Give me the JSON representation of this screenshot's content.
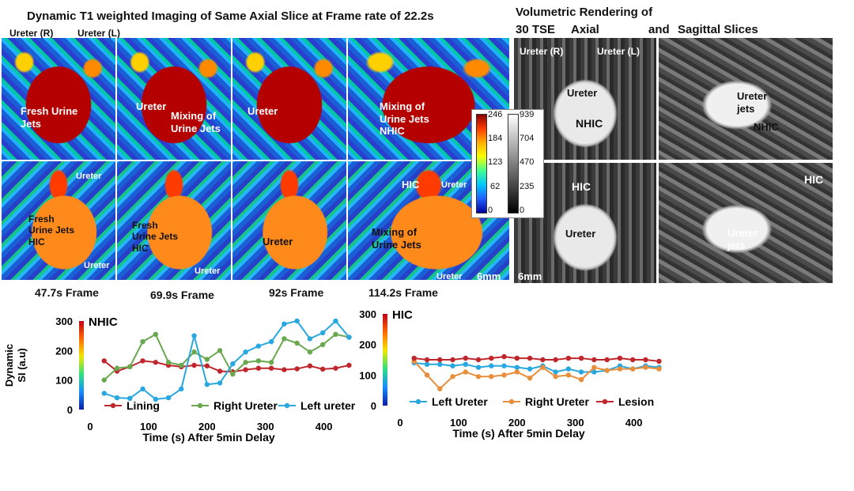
{
  "header": {
    "title": "Dynamic T1 weighted Imaging of Same Axial Slice  at Frame rate of 22.2s",
    "volumetric_line1": "Volumetric Rendering of",
    "volumetric_line2": "30 TSE",
    "axial": "Axial",
    "and": "and",
    "sagittal": "Sagittal Slices"
  },
  "labels": {
    "ureter_r": "Ureter (R)",
    "ureter_l": "Ureter (L)",
    "fresh_urine_jets": "Fresh Urine\nJets",
    "ureter": "Ureter",
    "mixing_of_urine_jets": "Mixing of\nUrine Jets",
    "mixing_nhic": "Mixing of\nUrine Jets\nNHIC",
    "fresh_hic_1": "Fresh\nUrine Jets\nHIC",
    "fresh_hic_2": "Fresh\nUrine Jets\nHIC",
    "hic": "HIC",
    "nhic": "NHIC",
    "mixing_lower": "Mixing of\nUrine Jets",
    "ureter_jets": "Ureter\njets",
    "ureter_jets_2": "Ureter\njets",
    "scale": "6mm"
  },
  "frames": [
    "47.7s Frame",
    "69.9s Frame",
    "92s Frame",
    "114.2s Frame"
  ],
  "colorbars": {
    "color": [
      "246",
      "184",
      "123",
      "62",
      "0"
    ],
    "gray": [
      "939",
      "704",
      "470",
      "235",
      "0"
    ]
  },
  "chart_data": [
    {
      "type": "line",
      "title": "NHIC",
      "ylabel": "Dynamic SI (a.u)",
      "xlabel": "Time (s) After 5min Delay",
      "xlim": [
        0,
        460
      ],
      "ylim": [
        0,
        300
      ],
      "xticks": [
        "0",
        "100",
        "200",
        "300",
        "400"
      ],
      "yticks": [
        "0",
        "100",
        "200",
        "300"
      ],
      "legend": "bottom",
      "series": [
        {
          "name": "Lining",
          "color": "#c0272d",
          "x": [
            24,
            46,
            68,
            90,
            112,
            134,
            156,
            178,
            200,
            222,
            244,
            266,
            288,
            310,
            332,
            354,
            376,
            398,
            420,
            443
          ],
          "y": [
            165,
            130,
            145,
            165,
            160,
            150,
            145,
            150,
            148,
            130,
            128,
            135,
            140,
            140,
            135,
            138,
            148,
            137,
            140,
            150
          ]
        },
        {
          "name": "Right Ureter",
          "color": "#6aa84f",
          "x": [
            24,
            46,
            68,
            90,
            112,
            134,
            156,
            178,
            200,
            222,
            244,
            266,
            288,
            310,
            332,
            354,
            376,
            398,
            420,
            443
          ],
          "y": [
            100,
            140,
            145,
            230,
            255,
            160,
            150,
            195,
            170,
            200,
            120,
            160,
            165,
            160,
            240,
            225,
            195,
            220,
            255,
            245
          ]
        },
        {
          "name": "Left ureter",
          "color": "#29a8e0",
          "x": [
            24,
            46,
            68,
            90,
            112,
            134,
            156,
            178,
            200,
            222,
            244,
            266,
            288,
            310,
            332,
            354,
            376,
            398,
            420,
            443
          ],
          "y": [
            55,
            40,
            38,
            70,
            35,
            40,
            70,
            250,
            85,
            90,
            155,
            195,
            215,
            230,
            290,
            300,
            240,
            260,
            300,
            245
          ]
        }
      ]
    },
    {
      "type": "line",
      "title": "HIC",
      "ylabel": "",
      "xlabel": "Time (s) After 5min Delay",
      "xlim": [
        0,
        460
      ],
      "ylim": [
        0,
        300
      ],
      "xticks": [
        "0",
        "100",
        "200",
        "300",
        "400"
      ],
      "yticks": [
        "0",
        "100",
        "200",
        "300"
      ],
      "legend": "bottom",
      "series": [
        {
          "name": "Left Ureter",
          "color": "#29a8e0",
          "x": [
            24,
            46,
            68,
            90,
            112,
            134,
            156,
            178,
            200,
            222,
            244,
            266,
            288,
            310,
            332,
            354,
            376,
            398,
            420,
            443
          ],
          "y": [
            140,
            135,
            135,
            130,
            135,
            125,
            130,
            130,
            125,
            120,
            130,
            110,
            120,
            110,
            110,
            115,
            130,
            120,
            130,
            125
          ]
        },
        {
          "name": "Right Ureter",
          "color": "#e98e3a",
          "x": [
            24,
            46,
            68,
            90,
            112,
            134,
            156,
            178,
            200,
            222,
            244,
            266,
            288,
            310,
            332,
            354,
            376,
            398,
            420,
            443
          ],
          "y": [
            145,
            100,
            55,
            95,
            110,
            95,
            95,
            100,
            110,
            90,
            125,
            95,
            100,
            85,
            125,
            115,
            120,
            120,
            125,
            120
          ]
        },
        {
          "name": "Lesion",
          "color": "#c0272d",
          "x": [
            24,
            46,
            68,
            90,
            112,
            134,
            156,
            178,
            200,
            222,
            244,
            266,
            288,
            310,
            332,
            354,
            376,
            398,
            420,
            443
          ],
          "y": [
            155,
            150,
            150,
            150,
            155,
            150,
            155,
            160,
            155,
            155,
            150,
            150,
            155,
            155,
            150,
            150,
            155,
            150,
            150,
            145
          ]
        }
      ]
    }
  ]
}
